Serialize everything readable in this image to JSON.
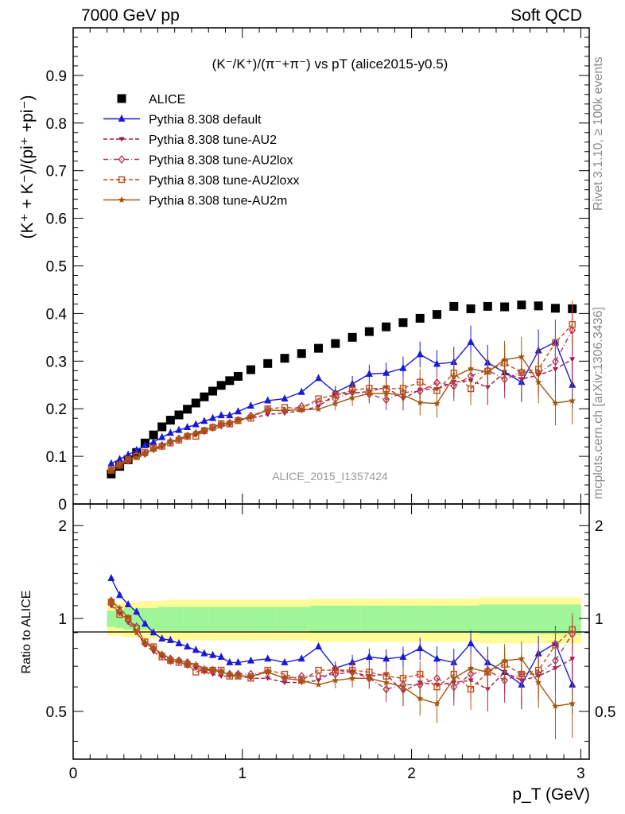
{
  "header": {
    "left": "7000 GeV pp",
    "right": "Soft QCD"
  },
  "side": {
    "rivet": "Rivet 3.1.10, ≥ 100k events",
    "mcplots": "mcplots.cern.ch [arXiv:1306.3436]"
  },
  "chart_data": [
    {
      "type": "scatter",
      "panel": "main",
      "title": "(K⁻/K⁺)/(π⁻+π⁻) vs pT (alice2015-y0.5)",
      "ylabel": "(K⁺ + K⁻)/(pi⁺ +pi⁻)",
      "watermark": "ALICE_2015_I1357424",
      "xlim": [
        0,
        3.05
      ],
      "ylim": [
        0,
        1.0
      ],
      "yticks": [
        {
          "v": 0,
          "t": "0"
        },
        {
          "v": 0.1,
          "t": "0.1"
        },
        {
          "v": 0.2,
          "t": "0.2"
        },
        {
          "v": 0.3,
          "t": "0.3"
        },
        {
          "v": 0.4,
          "t": "0.4"
        },
        {
          "v": 0.5,
          "t": "0.5"
        },
        {
          "v": 0.6,
          "t": "0.6"
        },
        {
          "v": 0.7,
          "t": "0.7"
        },
        {
          "v": 0.8,
          "t": "0.8"
        },
        {
          "v": 0.9,
          "t": "0.9"
        }
      ],
      "x": [
        0.225,
        0.275,
        0.325,
        0.375,
        0.425,
        0.475,
        0.525,
        0.575,
        0.625,
        0.675,
        0.725,
        0.775,
        0.825,
        0.875,
        0.925,
        0.975,
        1.05,
        1.15,
        1.25,
        1.35,
        1.45,
        1.55,
        1.65,
        1.75,
        1.85,
        1.95,
        2.05,
        2.15,
        2.25,
        2.35,
        2.45,
        2.55,
        2.65,
        2.75,
        2.85,
        2.95
      ],
      "legend_position": "top-left",
      "series": [
        {
          "name": "ALICE",
          "color": "#000000",
          "marker": "square",
          "line": "none",
          "values": [
            0.063,
            0.079,
            0.093,
            0.108,
            0.128,
            0.145,
            0.162,
            0.176,
            0.187,
            0.199,
            0.212,
            0.225,
            0.237,
            0.249,
            0.259,
            0.268,
            0.282,
            0.295,
            0.306,
            0.316,
            0.327,
            0.337,
            0.35,
            0.362,
            0.372,
            0.381,
            0.39,
            0.398,
            0.415,
            0.41,
            0.415,
            0.414,
            0.418,
            0.416,
            0.411,
            0.41
          ]
        },
        {
          "name": "Pythia 8.308 default",
          "color": "#1a1ad6",
          "marker": "triangle-up",
          "line": "solid",
          "values": [
            0.085,
            0.094,
            0.103,
            0.113,
            0.123,
            0.13,
            0.14,
            0.149,
            0.155,
            0.161,
            0.167,
            0.174,
            0.18,
            0.186,
            0.186,
            0.194,
            0.206,
            0.217,
            0.221,
            0.235,
            0.264,
            0.234,
            0.252,
            0.273,
            0.275,
            0.285,
            0.314,
            0.294,
            0.298,
            0.34,
            0.297,
            0.276,
            0.256,
            0.322,
            0.34,
            0.25
          ]
        },
        {
          "name": "Pythia 8.308 tune-AU2",
          "color": "#a3184a",
          "marker": "triangle-down",
          "line": "dashed",
          "values": [
            0.069,
            0.082,
            0.09,
            0.097,
            0.105,
            0.113,
            0.121,
            0.127,
            0.136,
            0.14,
            0.147,
            0.15,
            0.157,
            0.162,
            0.168,
            0.178,
            0.18,
            0.188,
            0.191,
            0.196,
            0.205,
            0.23,
            0.233,
            0.236,
            0.245,
            0.221,
            0.24,
            0.241,
            0.256,
            0.259,
            0.245,
            0.277,
            0.262,
            0.271,
            0.283,
            0.304
          ]
        },
        {
          "name": "Pythia 8.308 tune-AU2lox",
          "color": "#b03060",
          "marker": "diamond",
          "line": "dashdot",
          "values": [
            0.072,
            0.083,
            0.092,
            0.102,
            0.106,
            0.116,
            0.123,
            0.131,
            0.137,
            0.143,
            0.148,
            0.154,
            0.161,
            0.167,
            0.17,
            0.176,
            0.185,
            0.198,
            0.195,
            0.205,
            0.214,
            0.221,
            0.235,
            0.231,
            0.219,
            0.234,
            0.237,
            0.255,
            0.248,
            0.269,
            0.281,
            0.262,
            0.277,
            0.275,
            0.299,
            0.365
          ]
        },
        {
          "name": "Pythia 8.308 tune-AU2loxx",
          "color": "#c24e1a",
          "marker": "square-open",
          "line": "dashed",
          "values": [
            0.071,
            0.081,
            0.093,
            0.1,
            0.108,
            0.117,
            0.121,
            0.128,
            0.134,
            0.142,
            0.142,
            0.154,
            0.161,
            0.169,
            0.168,
            0.175,
            0.18,
            0.2,
            0.203,
            0.2,
            0.221,
            0.229,
            0.239,
            0.243,
            0.242,
            0.243,
            0.256,
            0.238,
            0.275,
            0.242,
            0.279,
            0.296,
            0.276,
            0.283,
            0.339,
            0.377
          ]
        },
        {
          "name": "Pythia 8.308 tune-AU2m",
          "color": "#a3580f",
          "marker": "star",
          "line": "solid",
          "values": [
            0.072,
            0.085,
            0.094,
            0.097,
            0.106,
            0.116,
            0.124,
            0.131,
            0.136,
            0.144,
            0.15,
            0.156,
            0.16,
            0.168,
            0.171,
            0.174,
            0.184,
            0.197,
            0.196,
            0.198,
            0.199,
            0.211,
            0.223,
            0.232,
            0.232,
            0.229,
            0.213,
            0.211,
            0.267,
            0.284,
            0.277,
            0.303,
            0.309,
            0.256,
            0.212,
            0.217
          ]
        }
      ]
    },
    {
      "type": "scatter",
      "panel": "ratio",
      "ylabel": "Ratio to ALICE",
      "xlabel": "p_T (GeV)",
      "xlim": [
        0,
        3.05
      ],
      "ylim": [
        0.35,
        2.35
      ],
      "yscale": "log",
      "xticks": [
        {
          "v": 0,
          "t": "0"
        },
        {
          "v": 1,
          "t": "1"
        },
        {
          "v": 2,
          "t": "2"
        },
        {
          "v": 3,
          "t": "3"
        }
      ],
      "yticks": [
        {
          "v": 0.5,
          "t": "0.5"
        },
        {
          "v": 1,
          "t": "1"
        },
        {
          "v": 2,
          "t": "2"
        }
      ],
      "band": {
        "x_edges": [
          0.2,
          0.25,
          0.3,
          0.35,
          0.4,
          0.45,
          0.5,
          0.55,
          0.6,
          0.65,
          0.7,
          0.75,
          0.8,
          0.85,
          0.9,
          0.95,
          1.0,
          1.1,
          1.2,
          1.3,
          1.4,
          1.5,
          1.6,
          1.7,
          1.8,
          1.9,
          2.0,
          2.1,
          2.2,
          2.3,
          2.4,
          2.5,
          2.6,
          2.7,
          2.8,
          2.9,
          3.0
        ],
        "green_halfwidth": [
          0.06,
          0.07,
          0.08,
          0.08,
          0.08,
          0.08,
          0.09,
          0.09,
          0.09,
          0.09,
          0.09,
          0.09,
          0.09,
          0.09,
          0.09,
          0.09,
          0.09,
          0.09,
          0.09,
          0.09,
          0.1,
          0.1,
          0.1,
          0.1,
          0.1,
          0.1,
          0.1,
          0.1,
          0.1,
          0.1,
          0.11,
          0.11,
          0.11,
          0.11,
          0.11,
          0.11
        ],
        "yellow_halfwidth": [
          0.12,
          0.12,
          0.13,
          0.13,
          0.14,
          0.14,
          0.14,
          0.15,
          0.15,
          0.15,
          0.15,
          0.15,
          0.15,
          0.15,
          0.15,
          0.15,
          0.15,
          0.15,
          0.15,
          0.15,
          0.16,
          0.16,
          0.16,
          0.16,
          0.16,
          0.16,
          0.16,
          0.16,
          0.16,
          0.16,
          0.17,
          0.17,
          0.17,
          0.17,
          0.17,
          0.17
        ]
      },
      "series": [
        {
          "name": "Pythia 8.308 default",
          "values": [
            1.35,
            1.19,
            1.11,
            1.05,
            0.96,
            0.9,
            0.86,
            0.85,
            0.83,
            0.81,
            0.79,
            0.77,
            0.76,
            0.75,
            0.72,
            0.72,
            0.73,
            0.74,
            0.72,
            0.74,
            0.81,
            0.69,
            0.72,
            0.75,
            0.74,
            0.75,
            0.8,
            0.74,
            0.72,
            0.83,
            0.72,
            0.67,
            0.61,
            0.77,
            0.83,
            0.61
          ]
        },
        {
          "name": "Pythia 8.308 tune-AU2",
          "values": [
            1.1,
            1.04,
            0.97,
            0.9,
            0.82,
            0.78,
            0.75,
            0.72,
            0.73,
            0.7,
            0.69,
            0.67,
            0.66,
            0.65,
            0.65,
            0.66,
            0.64,
            0.64,
            0.62,
            0.62,
            0.63,
            0.68,
            0.67,
            0.65,
            0.66,
            0.58,
            0.62,
            0.61,
            0.62,
            0.63,
            0.59,
            0.67,
            0.63,
            0.65,
            0.69,
            0.74
          ]
        },
        {
          "name": "Pythia 8.308 tune-AU2lox",
          "values": [
            1.14,
            1.05,
            0.99,
            0.94,
            0.83,
            0.8,
            0.76,
            0.74,
            0.73,
            0.72,
            0.7,
            0.68,
            0.68,
            0.67,
            0.66,
            0.66,
            0.66,
            0.67,
            0.64,
            0.65,
            0.65,
            0.66,
            0.67,
            0.64,
            0.59,
            0.61,
            0.61,
            0.64,
            0.6,
            0.66,
            0.68,
            0.63,
            0.66,
            0.66,
            0.73,
            0.89
          ]
        },
        {
          "name": "Pythia 8.308 tune-AU2loxx",
          "values": [
            1.13,
            1.03,
            1.0,
            0.93,
            0.84,
            0.81,
            0.75,
            0.73,
            0.72,
            0.71,
            0.67,
            0.68,
            0.68,
            0.68,
            0.65,
            0.65,
            0.64,
            0.68,
            0.66,
            0.63,
            0.68,
            0.68,
            0.68,
            0.67,
            0.65,
            0.64,
            0.66,
            0.6,
            0.66,
            0.59,
            0.67,
            0.71,
            0.66,
            0.68,
            0.82,
            0.92
          ]
        },
        {
          "name": "Pythia 8.308 tune-AU2m",
          "values": [
            1.14,
            1.08,
            1.01,
            0.9,
            0.83,
            0.8,
            0.77,
            0.74,
            0.73,
            0.72,
            0.71,
            0.69,
            0.68,
            0.67,
            0.66,
            0.65,
            0.65,
            0.67,
            0.64,
            0.63,
            0.61,
            0.63,
            0.64,
            0.64,
            0.62,
            0.6,
            0.55,
            0.53,
            0.64,
            0.69,
            0.67,
            0.73,
            0.74,
            0.62,
            0.52,
            0.53
          ]
        }
      ]
    }
  ]
}
